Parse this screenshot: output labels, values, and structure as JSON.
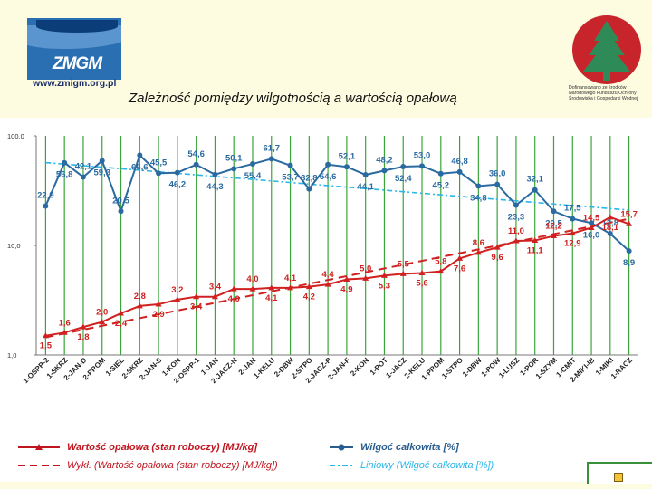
{
  "header": {
    "logo_left": {
      "mark": "ZMGM",
      "url": "www.zmigm.org.pl"
    },
    "title": "Zależność pomiędzy wilgotnością a wartością opałową",
    "logo_right_text": "Dofinansowano ze środków Narodowego Funduszu Ochrony Środowiska i Gospodarki Wodnej"
  },
  "chart_data": {
    "type": "line",
    "yscale": "log",
    "ylim": [
      1,
      100
    ],
    "yticks": [
      "100,0",
      "10,0",
      "1,0"
    ],
    "categories": [
      "1-OSPP-2",
      "1-SKRZ",
      "2-JAN-D",
      "2-PROM",
      "1-SIEL",
      "2-SKRZ",
      "2-JAN-S",
      "1-KON",
      "2-OSPP-1",
      "1-JAN",
      "2-JACZ-N",
      "2-JAN",
      "1-KELU",
      "2-DBW",
      "2-STPO",
      "2-JACZ-P",
      "2-JAN-F",
      "2-KON",
      "1-POT",
      "1-JACZ",
      "2-KELU",
      "1-PROM",
      "1-STPO",
      "1-DBW",
      "1-POW",
      "1-LUSZ",
      "1-POR",
      "1-SZYM",
      "1-CMIT",
      "2-MIKI-IB",
      "1-MIKI",
      "1-RACZ"
    ],
    "series": [
      {
        "name": "Wilgoć całkowita [%]",
        "color": "#2a6aa0",
        "values": [
          22.9,
          56.8,
          42.1,
          59.3,
          20.5,
          66.6,
          45.5,
          46.2,
          54.6,
          44.3,
          50.1,
          55.4,
          61.7,
          53.7,
          32.8,
          54.6,
          52.1,
          44.1,
          48.2,
          52.4,
          53.0,
          45.2,
          46.8,
          34.8,
          36.0,
          23.3,
          32.1,
          20.5,
          17.5,
          16.0,
          12.8,
          8.9
        ],
        "labels": [
          "22,9",
          "56,8",
          "42,1",
          "59,3",
          "20,5",
          "66,6",
          "45,5",
          "46,2",
          "54,6",
          "44,3",
          "50,1",
          "55,4",
          "61,7",
          "53,7",
          "32,8",
          "54,6",
          "52,1",
          "44,1",
          "48,2",
          "52,4",
          "53,0",
          "45,2",
          "46,8",
          "34,8",
          "36,0",
          "23,3",
          "32,1",
          "20,5",
          "17,5",
          "16,0",
          "12,8",
          "8,9"
        ]
      },
      {
        "name": "Wartość opałowa (stan roboczy) [MJ/kg]",
        "color": "#d02020",
        "values": [
          1.5,
          1.6,
          1.8,
          2.0,
          2.4,
          2.8,
          2.9,
          3.2,
          3.4,
          3.4,
          4.0,
          4.0,
          4.1,
          4.1,
          4.2,
          4.4,
          4.9,
          5.0,
          5.3,
          5.5,
          5.6,
          5.8,
          7.6,
          8.6,
          9.6,
          11.0,
          11.1,
          12.2,
          12.9,
          14.5,
          18.1,
          15.7
        ],
        "labels": [
          "1,5",
          "1,6",
          "1,8",
          "2,0",
          "2,4",
          "2,8",
          "2,9",
          "3,2",
          "3,4",
          "3,4",
          "4,0",
          "4,0",
          "4,1",
          "4,1",
          "4,2",
          "4,4",
          "4,9",
          "5,0",
          "5,3",
          "5,5",
          "5,6",
          "5,8",
          "7,6",
          "8,6",
          "9,6",
          "11,0",
          "11,1",
          "12,2",
          "12,9",
          "14,5",
          "18,1",
          "15,7"
        ]
      }
    ],
    "trendlines": [
      {
        "name": "Liniowy (Wilgoć całkowita [%])",
        "color": "#29b6e8",
        "start": 57,
        "end": 21
      },
      {
        "name": "Wykł. (Wartość opałowa (stan roboczy) [MJ/kg])",
        "color": "#d02020",
        "start": 1.45,
        "end": 17.5
      }
    ]
  },
  "legend": [
    {
      "label": "Wartość opałowa (stan roboczy) [MJ/kg]",
      "color": "#c0141e",
      "style": "solid-triangle"
    },
    {
      "label": "Wilgoć całkowita [%]",
      "color": "#2a5d8f",
      "style": "solid-circle"
    },
    {
      "label": "Wykł. (Wartość opałowa (stan roboczy) [MJ/kg])",
      "color": "#c0141e",
      "style": "dashed"
    },
    {
      "label": "Liniowy (Wilgoć całkowita [%])",
      "color": "#29b6e8",
      "style": "dashed-dot"
    }
  ]
}
